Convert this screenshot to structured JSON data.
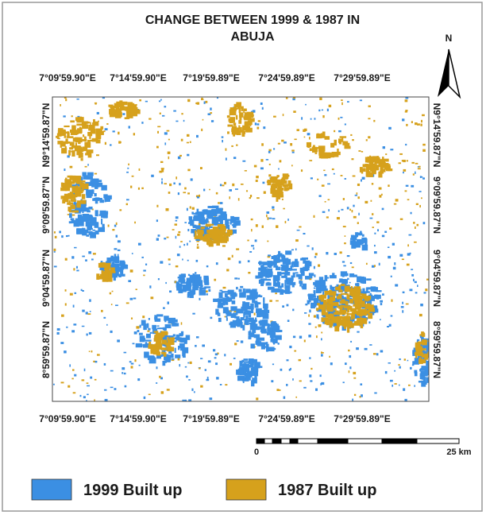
{
  "title_lines": [
    "CHANGE BETWEEN 1999 & 1987 IN",
    "ABUJA"
  ],
  "north": "N",
  "top_labels": [
    "7°09'59.90\"E",
    "7°14'59.90\"E",
    "7°19'59.89\"E",
    "7°24'59.89\"E",
    "7°29'59.89\"E"
  ],
  "bottom_labels": [
    "7°09'59.90\"E",
    "7°14'59.90\"E",
    "7°19'59.89\"E",
    "7°24'59.89\"E",
    "7°29'59.89\"E"
  ],
  "left_labels": [
    "N9°14'59.87\"N",
    "9°09'59.87\"N",
    "9°04'59.87\"N",
    "8°59'59.87\"N"
  ],
  "right_labels": [
    "N9°14'59.87\"N",
    "9°09'59.87\"N",
    "9°04'59.87\"N",
    "8°59'59.87\"N"
  ],
  "scale_bar": {
    "start": "0",
    "end": "25 km"
  },
  "legend": [
    {
      "label": "1999 Built up",
      "color": "#3b8fe3"
    },
    {
      "label": "1987 Built up",
      "color": "#d6a11c"
    }
  ]
}
